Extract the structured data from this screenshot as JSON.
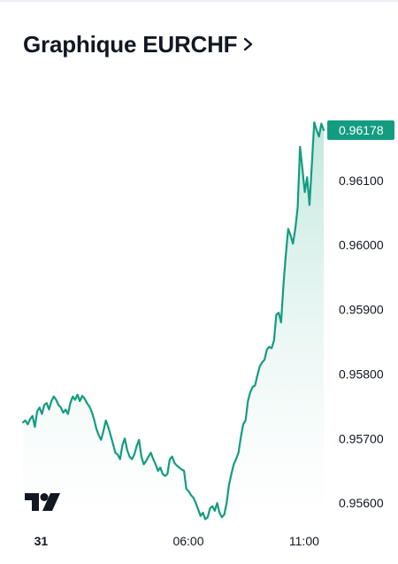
{
  "header": {
    "title": "Graphique EURCHF",
    "chevron_icon": "chevron-right-icon"
  },
  "branding": {
    "logo_icon": "tradingview-logo-icon"
  },
  "colors": {
    "line": "#139c80",
    "fill_top": "#bfe6dc",
    "fill_bottom": "#ffffff",
    "price_tag_bg": "#139c80",
    "price_tag_text": "#ffffff",
    "axis_text": "#131722"
  },
  "chart_data": {
    "type": "area",
    "symbol": "EURCHF",
    "last_price": "0.96178",
    "ylim": [
      0.9557,
      0.96215
    ],
    "y_ticks": [
      "0.96100",
      "0.96000",
      "0.95900",
      "0.95800",
      "0.95700",
      "0.95600"
    ],
    "x_ticks": [
      "31",
      "06:00",
      "11:00"
    ],
    "x_tick_positions": [
      0.06,
      0.55,
      0.935
    ],
    "series": [
      {
        "values": [
          0.95725,
          0.95728,
          0.95722,
          0.9573,
          0.95735,
          0.95718,
          0.95742,
          0.95748,
          0.95738,
          0.95752,
          0.95755,
          0.95745,
          0.95758,
          0.95765,
          0.9576,
          0.95752,
          0.95748,
          0.9574,
          0.95745,
          0.95738,
          0.95755,
          0.95765,
          0.9576,
          0.95768,
          0.95758,
          0.95766,
          0.95762,
          0.95755,
          0.9575,
          0.95742,
          0.9573,
          0.95715,
          0.95705,
          0.95698,
          0.95712,
          0.95728,
          0.95718,
          0.95705,
          0.95692,
          0.95678,
          0.95675,
          0.95668,
          0.9569,
          0.957,
          0.95682,
          0.95672,
          0.95668,
          0.95675,
          0.95688,
          0.95698,
          0.95672,
          0.9566,
          0.95665,
          0.95672,
          0.95678,
          0.95668,
          0.9566,
          0.9565,
          0.95655,
          0.95645,
          0.95642,
          0.95645,
          0.95668,
          0.95672,
          0.95662,
          0.95658,
          0.95655,
          0.95652,
          0.9565,
          0.95622,
          0.95618,
          0.95612,
          0.95608,
          0.956,
          0.9559,
          0.9558,
          0.95585,
          0.95575,
          0.95578,
          0.95592,
          0.95595,
          0.95588,
          0.956,
          0.95585,
          0.95578,
          0.95582,
          0.956,
          0.95628,
          0.95645,
          0.9566,
          0.95668,
          0.95678,
          0.95702,
          0.95722,
          0.95728,
          0.95758,
          0.95772,
          0.9578,
          0.95782,
          0.95798,
          0.95812,
          0.95818,
          0.95822,
          0.95838,
          0.95842,
          0.9584,
          0.95852,
          0.95892,
          0.95895,
          0.9588,
          0.95938,
          0.95985,
          0.96025,
          0.96015,
          0.96002,
          0.96025,
          0.96058,
          0.96152,
          0.96118,
          0.96082,
          0.96105,
          0.96062,
          0.96125,
          0.9619,
          0.96178,
          0.96168,
          0.96188,
          0.96178
        ]
      }
    ],
    "grid": false,
    "legend": "none"
  }
}
